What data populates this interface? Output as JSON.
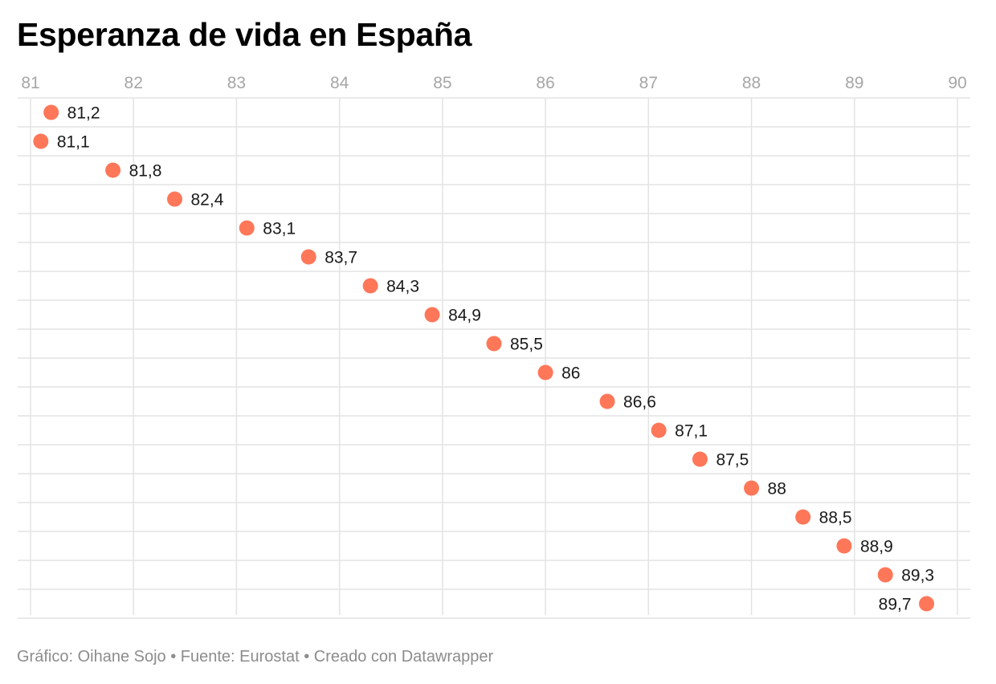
{
  "title": "Esperanza de vida en España",
  "footer": "Gráfico: Oihane Sojo • Fuente: Eurostat • Creado con Datawrapper",
  "colors": {
    "dot": "#ff7759",
    "grid": "#e3e3e3",
    "tick_text": "#a6a6a6",
    "label_text": "#1a1a1a"
  },
  "chart_data": {
    "type": "scatter",
    "title": "Esperanza de vida en España",
    "xlabel": "",
    "ylabel": "",
    "xlim": [
      81,
      90
    ],
    "x_ticks": [
      "81",
      "82",
      "83",
      "84",
      "85",
      "86",
      "87",
      "88",
      "89",
      "90"
    ],
    "grid": true,
    "values": [
      81.2,
      81.1,
      81.8,
      82.4,
      83.1,
      83.7,
      84.3,
      84.9,
      85.5,
      86,
      86.6,
      87.1,
      87.5,
      88,
      88.5,
      88.9,
      89.3,
      89.7
    ],
    "labels": [
      "81,2",
      "81,1",
      "81,8",
      "82,4",
      "83,1",
      "83,7",
      "84,3",
      "84,9",
      "85,5",
      "86",
      "86,6",
      "87,1",
      "87,5",
      "88",
      "88,5",
      "88,9",
      "89,3",
      "89,7"
    ]
  }
}
